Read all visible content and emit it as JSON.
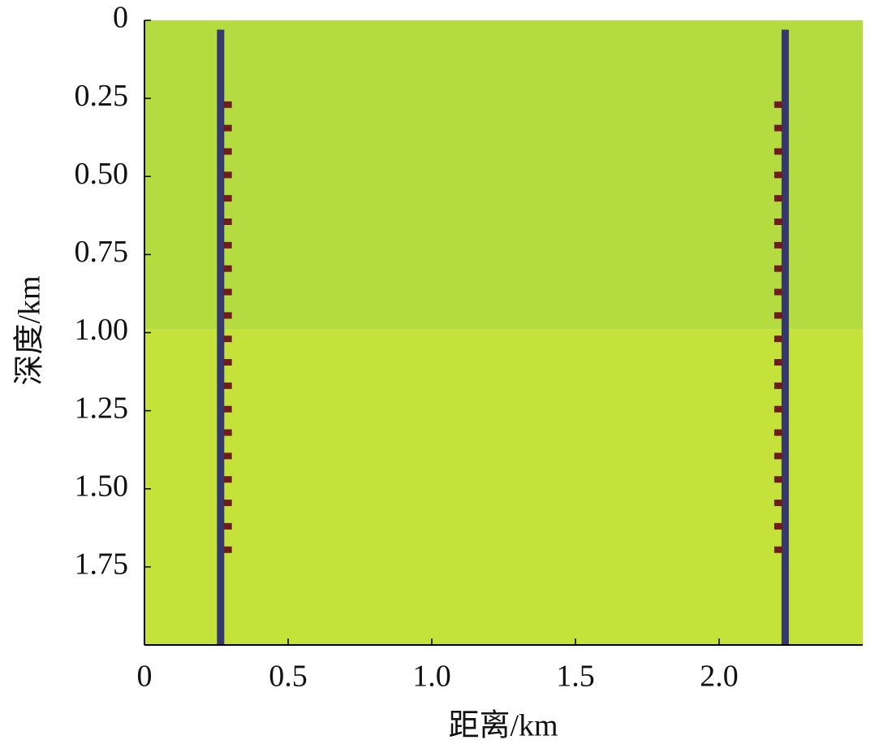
{
  "chart_data": {
    "type": "model",
    "xlabel": "距离/km",
    "ylabel": "深度/km",
    "xlim": [
      0,
      2.5
    ],
    "ylim": [
      0,
      2.0
    ],
    "y_inverted": true,
    "xticks": [
      0,
      0.5,
      {
        "value": 1,
        "label": "1.0"
      },
      1.5,
      {
        "value": 2,
        "label": "2.0"
      }
    ],
    "yticks": [
      0,
      0.25,
      {
        "value": 0.5,
        "label": "0.50"
      },
      0.75,
      {
        "value": 1,
        "label": "1.00"
      },
      1.25,
      {
        "value": 1.5,
        "label": "1.50"
      },
      1.75
    ],
    "interfaces": [
      0.99
    ],
    "layer_colors": [
      "#b4dc40",
      "#c4e23a"
    ],
    "wells": {
      "x": [
        0.265,
        2.23
      ],
      "top": 0.03,
      "color": "#35396b"
    },
    "receivers": {
      "x": [
        0.29,
        2.206
      ],
      "depths": [
        0.27,
        0.345,
        0.42,
        0.495,
        0.57,
        0.645,
        0.72,
        0.795,
        0.87,
        0.945,
        1.02,
        1.095,
        1.17,
        1.245,
        1.32,
        1.395,
        1.47,
        1.545,
        1.62,
        1.695
      ],
      "color": "#6e1c1c"
    }
  }
}
